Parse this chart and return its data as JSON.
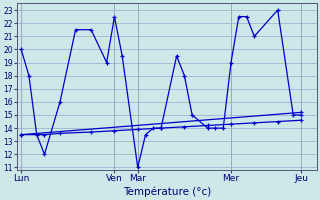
{
  "background_color": "#cce8e8",
  "grid_color": "#99aacc",
  "line_color": "#0000cc",
  "xlabel": "Température (°c)",
  "x_tick_positions": [
    0,
    12,
    15,
    27,
    36
  ],
  "x_tick_labels": [
    "Lun",
    "Ven",
    "Mar",
    "Mer",
    "Jeu"
  ],
  "ylim_min": 10.8,
  "ylim_max": 23.5,
  "y_ticks": [
    11,
    12,
    13,
    14,
    15,
    16,
    17,
    18,
    19,
    20,
    21,
    22,
    23
  ],
  "xlim_min": -0.5,
  "xlim_max": 38,
  "wavy_x": [
    0,
    1,
    2,
    3,
    5,
    7,
    9,
    11,
    12,
    13,
    15,
    16,
    17,
    18,
    20,
    21,
    22,
    24,
    25,
    26,
    27,
    28,
    29,
    30,
    33,
    35,
    36
  ],
  "wavy_y": [
    20,
    18,
    13.5,
    12,
    16,
    21.5,
    21.5,
    19,
    22.5,
    19.5,
    11,
    13.5,
    14,
    14,
    19.5,
    18,
    15,
    14,
    14,
    14,
    19,
    22.5,
    22.5,
    21,
    23,
    15,
    15
  ],
  "trend_x": [
    0,
    36
  ],
  "trend_y": [
    13.5,
    15.2
  ],
  "flat_x": [
    0,
    3,
    5,
    9,
    12,
    15,
    18,
    21,
    24,
    27,
    30,
    33,
    36
  ],
  "flat_y": [
    13.5,
    13.5,
    13.6,
    13.7,
    13.8,
    13.9,
    14.0,
    14.1,
    14.2,
    14.3,
    14.4,
    14.5,
    14.6
  ]
}
